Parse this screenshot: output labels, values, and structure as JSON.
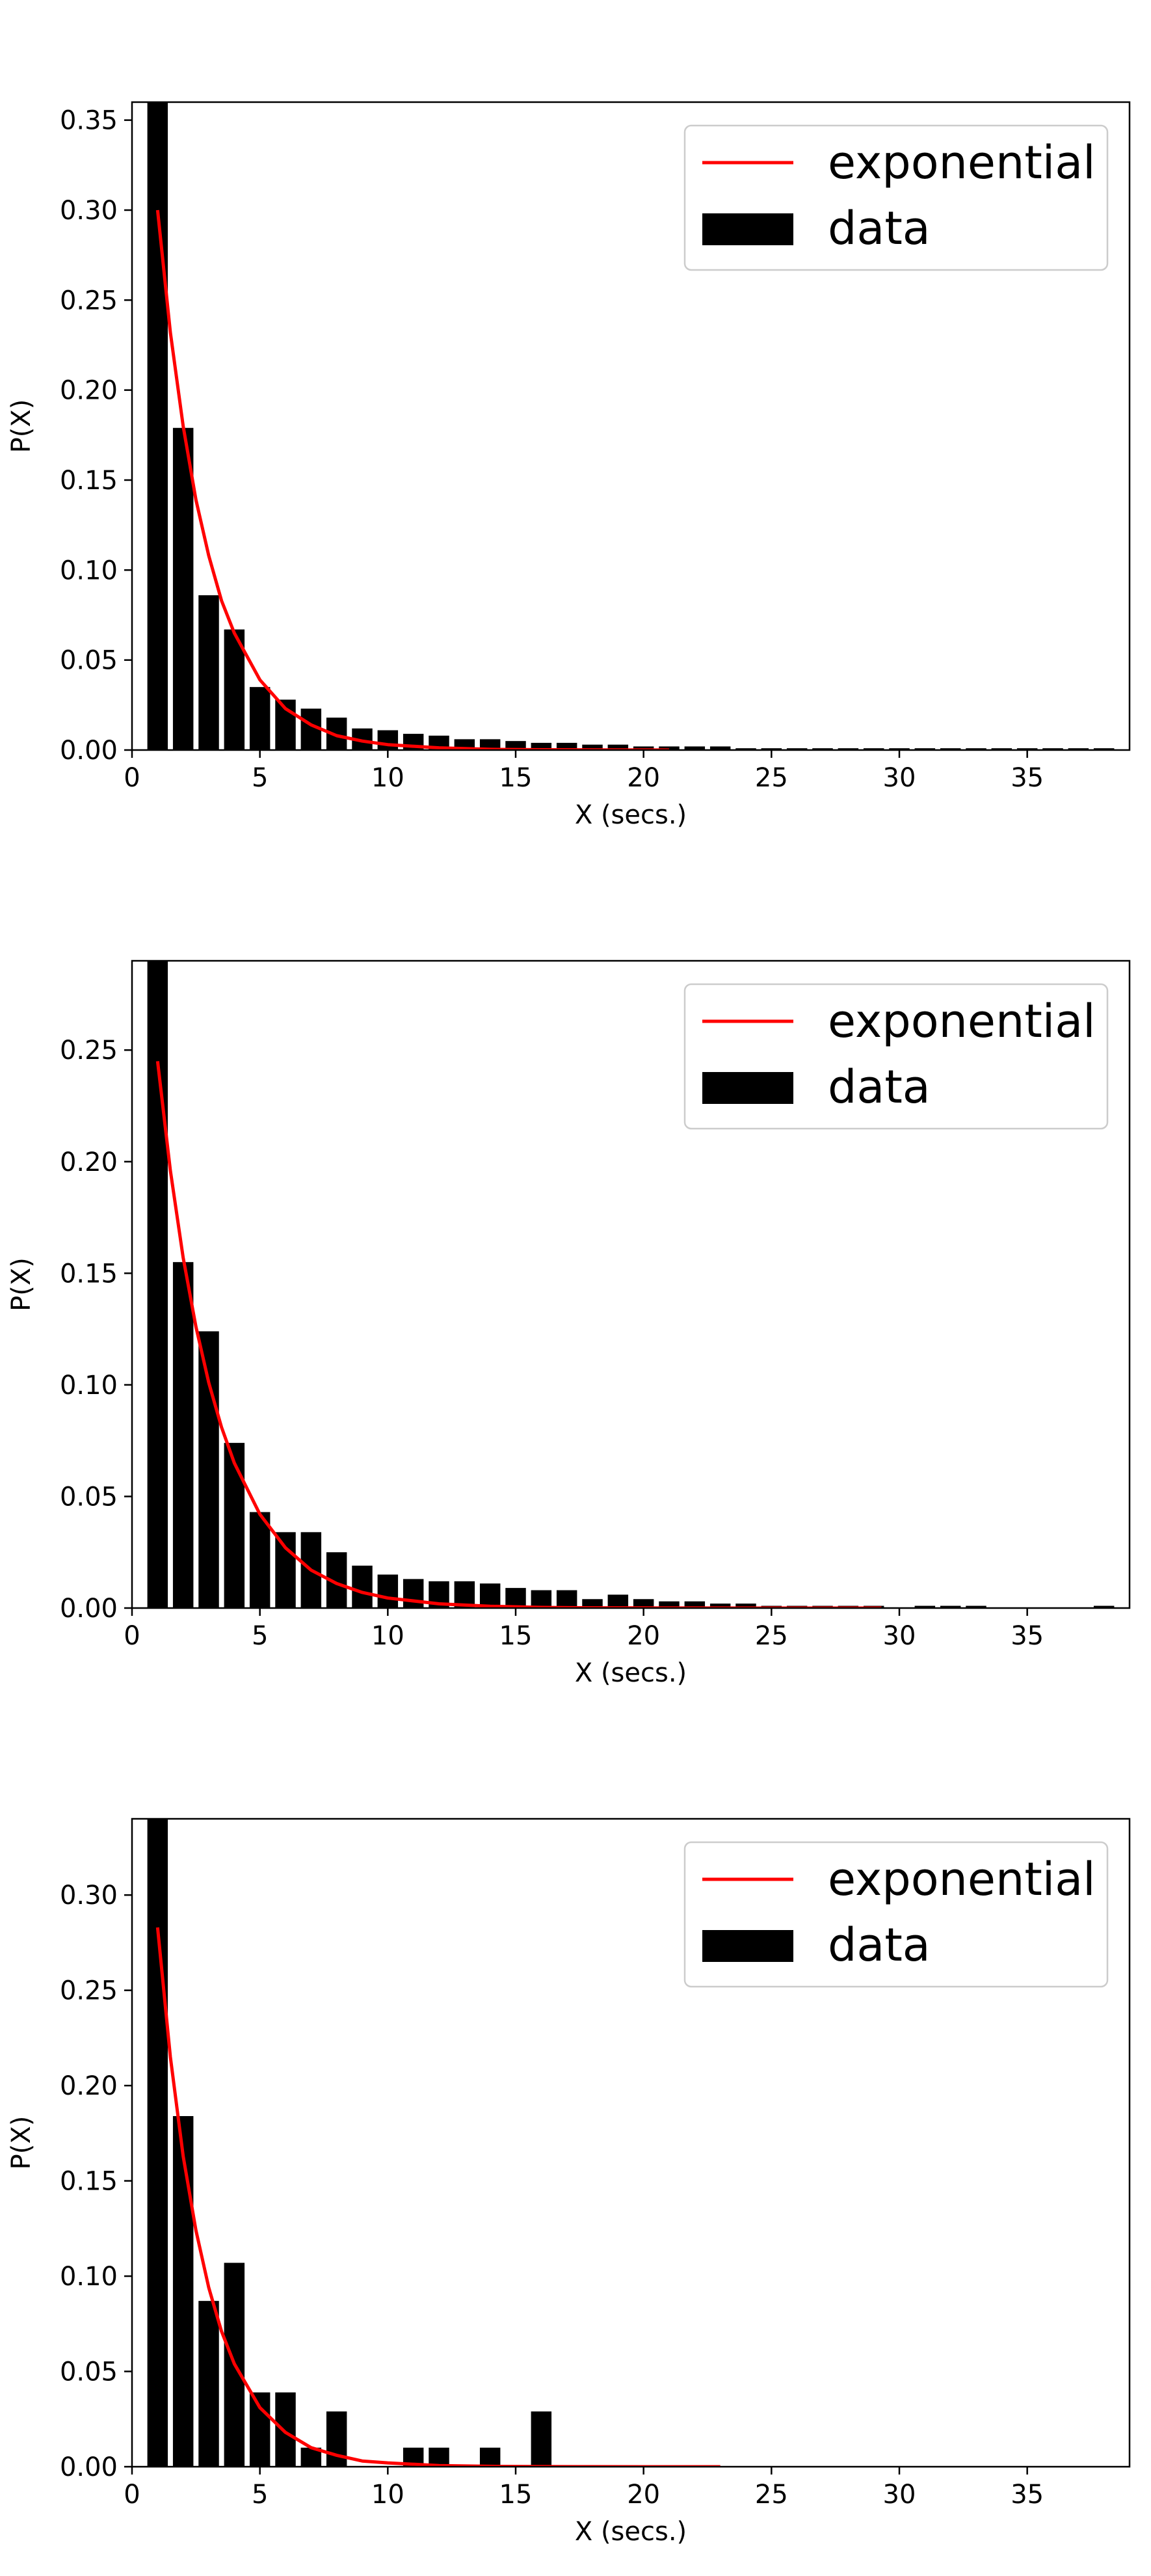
{
  "chart_data": [
    {
      "type": "bar",
      "xlabel": "X (secs.)",
      "ylabel": "P(X)",
      "xlim": [
        0,
        39
      ],
      "ylim": [
        0,
        0.36
      ],
      "xticks": [
        0,
        5,
        10,
        15,
        20,
        25,
        30,
        35
      ],
      "yticks": [
        0.0,
        0.05,
        0.1,
        0.15,
        0.2,
        0.25,
        0.3,
        0.35
      ],
      "ytick_labels": [
        "0.00",
        "0.05",
        "0.10",
        "0.15",
        "0.20",
        "0.25",
        "0.30",
        "0.35"
      ],
      "legend_position": "upper right",
      "series": [
        {
          "name": "data",
          "type": "bar",
          "color": "#000000",
          "x": [
            1,
            2,
            3,
            4,
            5,
            6,
            7,
            8,
            9,
            10,
            11,
            12,
            13,
            14,
            15,
            16,
            17,
            18,
            19,
            20,
            21,
            22,
            23,
            24,
            25,
            26,
            27,
            28,
            29,
            30,
            31,
            32,
            33,
            34,
            35,
            36,
            37,
            38
          ],
          "values": [
            0.36,
            0.179,
            0.086,
            0.067,
            0.035,
            0.028,
            0.023,
            0.018,
            0.012,
            0.011,
            0.009,
            0.008,
            0.006,
            0.006,
            0.005,
            0.004,
            0.004,
            0.003,
            0.003,
            0.002,
            0.002,
            0.002,
            0.002,
            0.001,
            0.001,
            0.001,
            0.001,
            0.001,
            0.001,
            0.001,
            0.001,
            0.001,
            0.001,
            0.001,
            0.001,
            0.001,
            0.001,
            0.001
          ]
        },
        {
          "name": "exponential",
          "type": "line",
          "color": "#ff0000",
          "x": [
            1,
            1.5,
            2,
            2.5,
            3,
            3.5,
            4,
            5,
            6,
            7,
            8,
            9,
            10,
            12,
            14,
            16,
            18,
            20,
            21
          ],
          "values": [
            0.3,
            0.232,
            0.18,
            0.139,
            0.108,
            0.083,
            0.065,
            0.039,
            0.023,
            0.014,
            0.008,
            0.005,
            0.003,
            0.0012,
            0.0004,
            0.0002,
            0.0001,
            3e-05,
            2e-05
          ]
        }
      ]
    },
    {
      "type": "bar",
      "xlabel": "X (secs.)",
      "ylabel": "P(X)",
      "xlim": [
        0,
        39
      ],
      "ylim": [
        0,
        0.29
      ],
      "xticks": [
        0,
        5,
        10,
        15,
        20,
        25,
        30,
        35
      ],
      "yticks": [
        0.0,
        0.05,
        0.1,
        0.15,
        0.2,
        0.25
      ],
      "ytick_labels": [
        "0.00",
        "0.05",
        "0.10",
        "0.15",
        "0.20",
        "0.25"
      ],
      "legend_position": "upper right",
      "series": [
        {
          "name": "data",
          "type": "bar",
          "color": "#000000",
          "x": [
            1,
            2,
            3,
            4,
            5,
            6,
            7,
            8,
            9,
            10,
            11,
            12,
            13,
            14,
            15,
            16,
            17,
            18,
            19,
            20,
            21,
            22,
            23,
            24,
            25,
            26,
            27,
            28,
            29,
            31,
            32,
            33,
            38
          ],
          "values": [
            0.29,
            0.155,
            0.124,
            0.074,
            0.043,
            0.034,
            0.034,
            0.025,
            0.019,
            0.015,
            0.013,
            0.012,
            0.012,
            0.011,
            0.009,
            0.008,
            0.008,
            0.004,
            0.006,
            0.004,
            0.003,
            0.003,
            0.002,
            0.002,
            0.001,
            0.001,
            0.001,
            0.001,
            0.001,
            0.001,
            0.001,
            0.001,
            0.001
          ]
        },
        {
          "name": "exponential",
          "type": "line",
          "color": "#ff0000",
          "x": [
            1,
            1.5,
            2,
            2.5,
            3,
            3.5,
            4,
            5,
            6,
            7,
            8,
            9,
            10,
            12,
            14,
            16,
            18,
            20,
            22,
            24,
            26,
            28,
            29.3
          ],
          "values": [
            0.245,
            0.196,
            0.157,
            0.126,
            0.101,
            0.081,
            0.065,
            0.042,
            0.027,
            0.017,
            0.011,
            0.007,
            0.0045,
            0.0019,
            0.0008,
            0.0003,
            0.0001,
            6e-05,
            3e-05,
            1e-05,
            1e-05,
            0.0,
            0.0
          ]
        }
      ]
    },
    {
      "type": "bar",
      "xlabel": "X (secs.)",
      "ylabel": "P(X)",
      "xlim": [
        0,
        39
      ],
      "ylim": [
        0,
        0.34
      ],
      "xticks": [
        0,
        5,
        10,
        15,
        20,
        25,
        30,
        35
      ],
      "yticks": [
        0.0,
        0.05,
        0.1,
        0.15,
        0.2,
        0.25,
        0.3
      ],
      "ytick_labels": [
        "0.00",
        "0.05",
        "0.10",
        "0.15",
        "0.20",
        "0.25",
        "0.30"
      ],
      "legend_position": "upper right",
      "series": [
        {
          "name": "data",
          "type": "bar",
          "color": "#000000",
          "x": [
            1,
            2,
            3,
            4,
            5,
            6,
            7,
            8,
            11,
            12,
            14,
            16
          ],
          "values": [
            0.34,
            0.184,
            0.087,
            0.107,
            0.039,
            0.039,
            0.01,
            0.029,
            0.01,
            0.01,
            0.01,
            0.029
          ]
        },
        {
          "name": "exponential",
          "type": "line",
          "color": "#ff0000",
          "x": [
            1,
            1.5,
            2,
            2.5,
            3,
            3.5,
            4,
            5,
            6,
            7,
            8,
            9,
            10,
            12,
            14,
            16,
            18,
            20,
            22,
            23
          ],
          "values": [
            0.283,
            0.215,
            0.163,
            0.124,
            0.094,
            0.071,
            0.054,
            0.031,
            0.018,
            0.01,
            0.006,
            0.003,
            0.002,
            0.0006,
            0.0002,
            0.0001,
            3e-05,
            1e-05,
            0.0,
            0.0
          ]
        }
      ]
    }
  ]
}
